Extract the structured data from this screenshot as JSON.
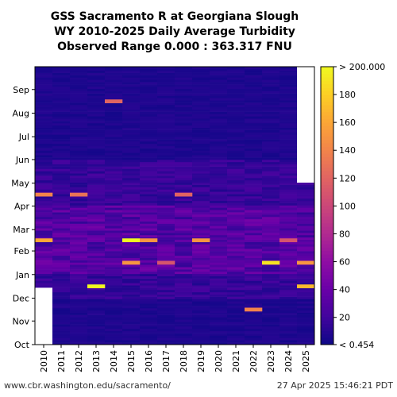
{
  "chart_data": {
    "type": "heatmap",
    "title": [
      "GSS Sacramento R at Georgiana Slough",
      "WY 2010-2025 Daily Average Turbidity",
      "Observed Range 0.000 : 363.317 FNU"
    ],
    "xlabel": "",
    "ylabel": "",
    "x_categories": [
      "2010",
      "2011",
      "2012",
      "2013",
      "2014",
      "2015",
      "2016",
      "2017",
      "2018",
      "2019",
      "2020",
      "2021",
      "2022",
      "2023",
      "2024",
      "2025"
    ],
    "y_ticks": [
      "Oct",
      "Nov",
      "Dec",
      "Jan",
      "Feb",
      "Mar",
      "Apr",
      "May",
      "Jun",
      "Jul",
      "Aug",
      "Sep"
    ],
    "colorbar": {
      "ticks": [
        "< 0.454",
        "20",
        "40",
        "60",
        "80",
        "100",
        "120",
        "140",
        "160",
        "180",
        "> 200.000"
      ],
      "range": [
        0.454,
        200
      ],
      "colormap": "plasma"
    },
    "missing_data": [
      {
        "year": "2010",
        "from": "Oct",
        "to": "mid-Dec"
      },
      {
        "year": "2025",
        "from": "May",
        "to": "Sep"
      }
    ],
    "events": [
      {
        "year": "2010",
        "month": "Feb",
        "value": 160
      },
      {
        "year": "2010",
        "month": "Apr",
        "value": 140
      },
      {
        "year": "2012",
        "month": "Apr",
        "value": 130
      },
      {
        "year": "2013",
        "month": "Dec",
        "value": 200
      },
      {
        "year": "2014",
        "month": "Aug",
        "value": 120
      },
      {
        "year": "2015",
        "month": "Feb",
        "value": 200
      },
      {
        "year": "2015",
        "month": "Jan",
        "value": 150
      },
      {
        "year": "2016",
        "month": "Feb",
        "value": 150
      },
      {
        "year": "2017",
        "month": "Jan",
        "value": 110
      },
      {
        "year": "2018",
        "month": "Apr",
        "value": 120
      },
      {
        "year": "2019",
        "month": "Feb",
        "value": 150
      },
      {
        "year": "2022",
        "month": "Nov",
        "value": 140
      },
      {
        "year": "2023",
        "month": "Jan",
        "value": 190
      },
      {
        "year": "2024",
        "month": "Feb",
        "value": 110
      },
      {
        "year": "2025",
        "month": "Jan",
        "value": 150
      },
      {
        "year": "2025",
        "month": "Dec",
        "value": 170
      }
    ]
  },
  "footer": {
    "url": "www.cbr.washington.edu/sacramento/",
    "timestamp": "27 Apr 2025 15:46:21 PDT"
  }
}
